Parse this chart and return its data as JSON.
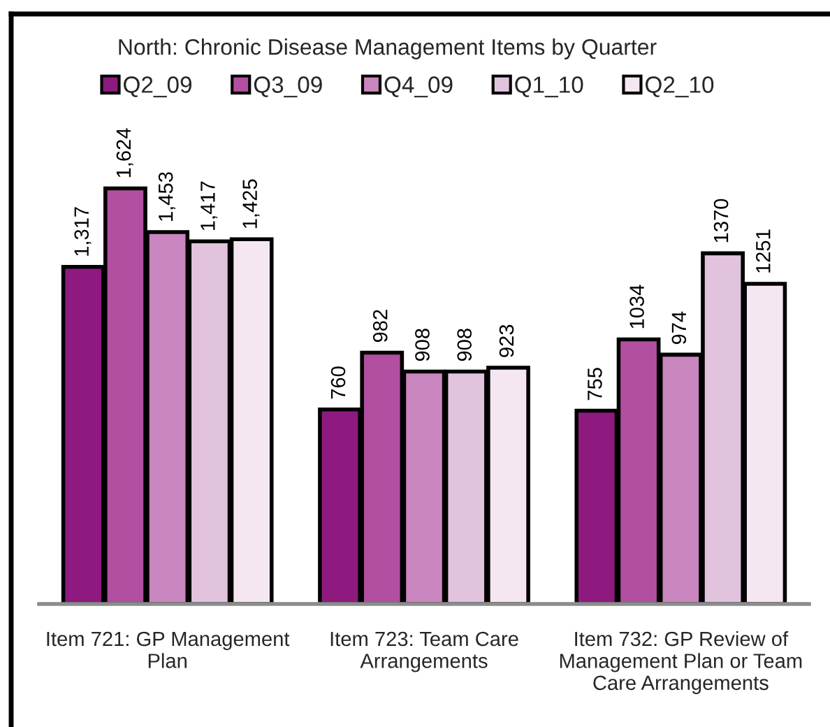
{
  "chart_data": {
    "type": "bar",
    "title": "North: Chronic Disease Management Items by Quarter",
    "categories": [
      "Item 721: GP Management\nPlan",
      "Item 723: Team Care\nArrangements",
      "Item 732: GP Review of\nManagement Plan or Team\nCare Arrangements"
    ],
    "series": [
      {
        "name": "Q2_09",
        "color": "#8e1a80",
        "values": [
          1317,
          760,
          755
        ],
        "value_labels": [
          "1,317",
          "760",
          "755"
        ]
      },
      {
        "name": "Q3_09",
        "color": "#b14fa0",
        "values": [
          1624,
          982,
          1034
        ],
        "value_labels": [
          "1,624",
          "982",
          "1034"
        ]
      },
      {
        "name": "Q4_09",
        "color": "#c985bd",
        "values": [
          1453,
          908,
          974
        ],
        "value_labels": [
          "1,453",
          "908",
          "974"
        ]
      },
      {
        "name": "Q1_10",
        "color": "#e2c3dd",
        "values": [
          1417,
          908,
          1370
        ],
        "value_labels": [
          "1,417",
          "908",
          "1370"
        ]
      },
      {
        "name": "Q2_10",
        "color": "#f5e7f1",
        "values": [
          1425,
          923,
          1251
        ],
        "value_labels": [
          "1,425",
          "923",
          "1251"
        ]
      }
    ],
    "legend": "top",
    "tick_labels": "x"
  }
}
